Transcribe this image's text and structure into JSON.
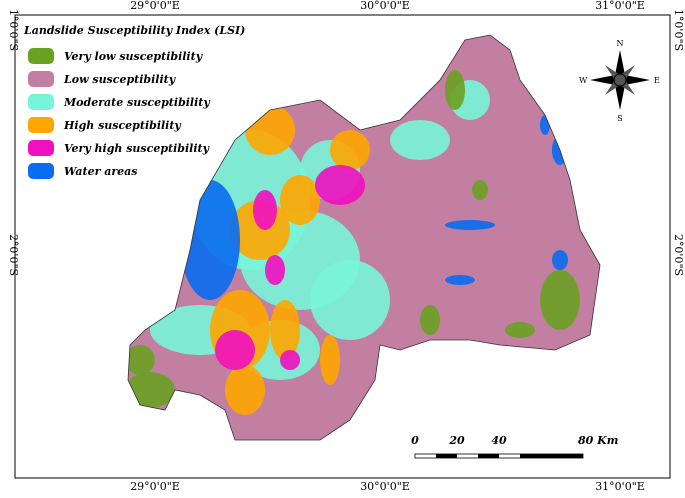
{
  "axes": {
    "top": [
      "29°0'0\"E",
      "30°0'0\"E",
      "31°0'0\"E"
    ],
    "bottom": [
      "29°0'0\"E",
      "30°0'0\"E",
      "31°0'0\"E"
    ],
    "left": [
      "1°0'0\"S",
      "2°0'0\"S"
    ],
    "right": [
      "1°0'0\"S",
      "2°0'0\"S"
    ]
  },
  "legend": {
    "title": "Landslide Susceptibility Index (LSI)",
    "items": [
      {
        "label": "Very low susceptibility",
        "color": "#6aa121"
      },
      {
        "label": "Low susceptibility",
        "color": "#c27fa2"
      },
      {
        "label": "Moderate susceptibility",
        "color": "#78f5d8"
      },
      {
        "label": "High susceptibility",
        "color": "#ffa600"
      },
      {
        "label": "Very high susceptibility",
        "color": "#f010c0"
      },
      {
        "label": "Water areas",
        "color": "#0a6cf0"
      }
    ]
  },
  "compass": {
    "n": "N",
    "s": "S",
    "e": "E",
    "w": "W"
  },
  "scale_bar": {
    "labels": [
      "0",
      "20",
      "40",
      "80 Km"
    ]
  }
}
